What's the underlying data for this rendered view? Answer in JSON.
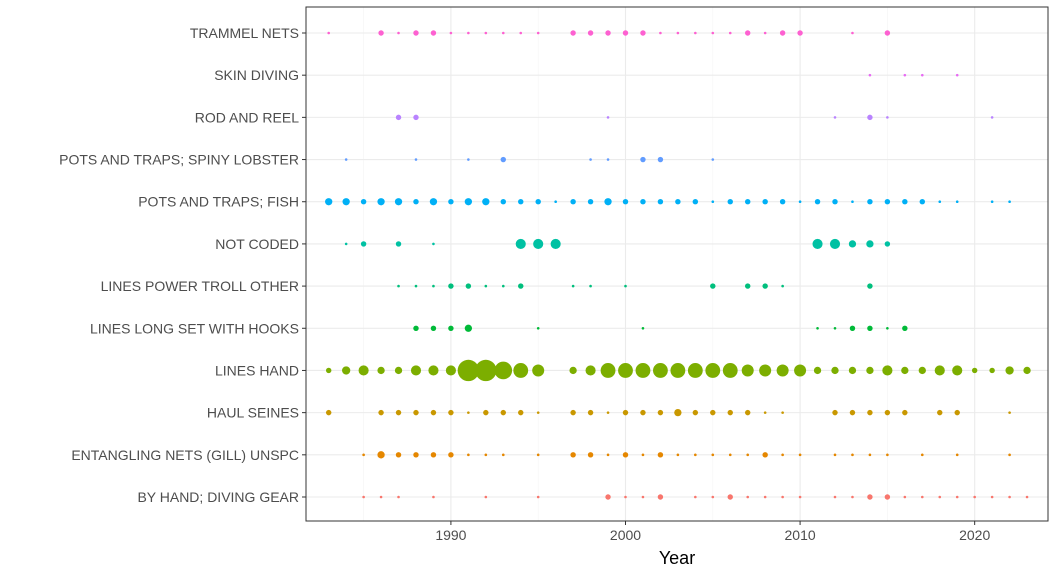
{
  "chart_data": {
    "type": "scatter",
    "title": "",
    "xlabel": "Year",
    "ylabel": "",
    "xlim": [
      1981.7,
      2024.2
    ],
    "x_ticks": [
      1990,
      2000,
      2010,
      2020
    ],
    "grid": true,
    "legend": "none",
    "size_encoding": "relative magnitude (1-5)",
    "categories": [
      "BY HAND; DIVING GEAR",
      "ENTANGLING NETS (GILL) UNSPC",
      "HAUL SEINES",
      "LINES HAND",
      "LINES LONG SET WITH HOOKS",
      "LINES POWER TROLL OTHER",
      "NOT CODED",
      "POTS AND TRAPS; FISH",
      "POTS AND TRAPS; SPINY LOBSTER",
      "ROD AND REEL",
      "SKIN DIVING",
      "TRAMMEL NETS"
    ],
    "series": [
      {
        "category": "BY HAND; DIVING GEAR",
        "color": "#F8766D",
        "points": [
          [
            1985,
            1
          ],
          [
            1986,
            1
          ],
          [
            1987,
            1
          ],
          [
            1989,
            1
          ],
          [
            1992,
            1
          ],
          [
            1995,
            1
          ],
          [
            1999,
            1.6
          ],
          [
            2000,
            1
          ],
          [
            2001,
            1
          ],
          [
            2002,
            1.6
          ],
          [
            2004,
            1
          ],
          [
            2005,
            1
          ],
          [
            2006,
            1.6
          ],
          [
            2007,
            1
          ],
          [
            2008,
            1
          ],
          [
            2009,
            1
          ],
          [
            2010,
            1
          ],
          [
            2012,
            1
          ],
          [
            2013,
            1
          ],
          [
            2014,
            1.6
          ],
          [
            2015,
            1.6
          ],
          [
            2016,
            1
          ],
          [
            2017,
            1
          ],
          [
            2018,
            1
          ],
          [
            2019,
            1
          ],
          [
            2020,
            1
          ],
          [
            2021,
            1
          ],
          [
            2022,
            1
          ],
          [
            2023,
            1
          ]
        ]
      },
      {
        "category": "ENTANGLING NETS (GILL) UNSPC",
        "color": "#E58700",
        "points": [
          [
            1985,
            1
          ],
          [
            1986,
            2
          ],
          [
            1987,
            1.6
          ],
          [
            1988,
            1.6
          ],
          [
            1989,
            1.6
          ],
          [
            1990,
            1.6
          ],
          [
            1991,
            1
          ],
          [
            1992,
            1
          ],
          [
            1993,
            1
          ],
          [
            1995,
            1
          ],
          [
            1997,
            1.6
          ],
          [
            1998,
            1.6
          ],
          [
            1999,
            1
          ],
          [
            2000,
            1.6
          ],
          [
            2001,
            1
          ],
          [
            2002,
            1.6
          ],
          [
            2003,
            1
          ],
          [
            2004,
            1
          ],
          [
            2005,
            1
          ],
          [
            2006,
            1
          ],
          [
            2007,
            1
          ],
          [
            2008,
            1.6
          ],
          [
            2009,
            1
          ],
          [
            2010,
            1
          ],
          [
            2012,
            1
          ],
          [
            2013,
            1
          ],
          [
            2014,
            1
          ],
          [
            2015,
            1
          ],
          [
            2017,
            1
          ],
          [
            2019,
            1
          ],
          [
            2022,
            1
          ]
        ]
      },
      {
        "category": "HAUL SEINES",
        "color": "#C99800",
        "points": [
          [
            1983,
            1.6
          ],
          [
            1986,
            1.6
          ],
          [
            1987,
            1.6
          ],
          [
            1988,
            1.6
          ],
          [
            1989,
            1.6
          ],
          [
            1990,
            1.6
          ],
          [
            1991,
            1
          ],
          [
            1992,
            1.6
          ],
          [
            1993,
            1.6
          ],
          [
            1994,
            1.6
          ],
          [
            1995,
            1
          ],
          [
            1997,
            1.6
          ],
          [
            1998,
            1.6
          ],
          [
            1999,
            1
          ],
          [
            2000,
            1.6
          ],
          [
            2001,
            1.6
          ],
          [
            2002,
            1.6
          ],
          [
            2003,
            2
          ],
          [
            2004,
            1.6
          ],
          [
            2005,
            1.6
          ],
          [
            2006,
            1.6
          ],
          [
            2007,
            1.6
          ],
          [
            2008,
            1
          ],
          [
            2009,
            1
          ],
          [
            2012,
            1.6
          ],
          [
            2013,
            1.6
          ],
          [
            2014,
            1.6
          ],
          [
            2015,
            1.6
          ],
          [
            2016,
            1.6
          ],
          [
            2018,
            1.6
          ],
          [
            2019,
            1.6
          ],
          [
            2022,
            1
          ]
        ]
      },
      {
        "category": "LINES HAND",
        "color": "#7CAE00",
        "points": [
          [
            1983,
            1.6
          ],
          [
            1984,
            2.2
          ],
          [
            1985,
            2.6
          ],
          [
            1986,
            2
          ],
          [
            1987,
            2
          ],
          [
            1988,
            2.6
          ],
          [
            1989,
            2.6
          ],
          [
            1990,
            2.6
          ],
          [
            1991,
            5
          ],
          [
            1992,
            5
          ],
          [
            1993,
            4.2
          ],
          [
            1994,
            3.6
          ],
          [
            1995,
            3
          ],
          [
            1997,
            2
          ],
          [
            1998,
            2.6
          ],
          [
            1999,
            3.6
          ],
          [
            2000,
            3.6
          ],
          [
            2001,
            3.6
          ],
          [
            2002,
            3.6
          ],
          [
            2003,
            3.6
          ],
          [
            2004,
            3.6
          ],
          [
            2005,
            3.6
          ],
          [
            2006,
            3.6
          ],
          [
            2007,
            3
          ],
          [
            2008,
            3
          ],
          [
            2009,
            3
          ],
          [
            2010,
            3
          ],
          [
            2011,
            2
          ],
          [
            2012,
            2
          ],
          [
            2013,
            2
          ],
          [
            2014,
            2
          ],
          [
            2015,
            2.6
          ],
          [
            2016,
            2
          ],
          [
            2017,
            2
          ],
          [
            2018,
            2.6
          ],
          [
            2019,
            2.6
          ],
          [
            2020,
            1.6
          ],
          [
            2021,
            1.6
          ],
          [
            2022,
            2.2
          ],
          [
            2023,
            2
          ]
        ]
      },
      {
        "category": "LINES LONG SET WITH HOOKS",
        "color": "#00BA38",
        "points": [
          [
            1988,
            1.6
          ],
          [
            1989,
            1.6
          ],
          [
            1990,
            1.6
          ],
          [
            1991,
            2
          ],
          [
            1995,
            1
          ],
          [
            2001,
            1
          ],
          [
            2011,
            1
          ],
          [
            2012,
            1
          ],
          [
            2013,
            1.6
          ],
          [
            2014,
            1.6
          ],
          [
            2015,
            1
          ],
          [
            2016,
            1.6
          ]
        ]
      },
      {
        "category": "LINES POWER TROLL OTHER",
        "color": "#00BF7D",
        "points": [
          [
            1987,
            1
          ],
          [
            1988,
            1
          ],
          [
            1989,
            1
          ],
          [
            1990,
            1.6
          ],
          [
            1991,
            1.6
          ],
          [
            1992,
            1
          ],
          [
            1993,
            1
          ],
          [
            1994,
            1.6
          ],
          [
            1997,
            1
          ],
          [
            1998,
            1
          ],
          [
            2000,
            1
          ],
          [
            2005,
            1.6
          ],
          [
            2007,
            1.6
          ],
          [
            2008,
            1.6
          ],
          [
            2009,
            1
          ],
          [
            2014,
            1.6
          ]
        ]
      },
      {
        "category": "NOT CODED",
        "color": "#00C1A3",
        "points": [
          [
            1984,
            1
          ],
          [
            1985,
            1.6
          ],
          [
            1987,
            1.6
          ],
          [
            1989,
            1
          ],
          [
            1994,
            2.6
          ],
          [
            1995,
            2.6
          ],
          [
            1996,
            2.6
          ],
          [
            2011,
            2.6
          ],
          [
            2012,
            2.6
          ],
          [
            2013,
            2
          ],
          [
            2014,
            2
          ],
          [
            2015,
            1.6
          ]
        ]
      },
      {
        "category": "POTS AND TRAPS; FISH",
        "color": "#00B0F6",
        "points": [
          [
            1983,
            2
          ],
          [
            1984,
            2
          ],
          [
            1985,
            1.6
          ],
          [
            1986,
            2
          ],
          [
            1987,
            2
          ],
          [
            1988,
            1.6
          ],
          [
            1989,
            2
          ],
          [
            1990,
            1.6
          ],
          [
            1991,
            2
          ],
          [
            1992,
            2
          ],
          [
            1993,
            1.6
          ],
          [
            1994,
            1.6
          ],
          [
            1995,
            1.6
          ],
          [
            1996,
            1
          ],
          [
            1997,
            1.6
          ],
          [
            1998,
            1.6
          ],
          [
            1999,
            2
          ],
          [
            2000,
            1.6
          ],
          [
            2001,
            1.6
          ],
          [
            2002,
            1.6
          ],
          [
            2003,
            1.6
          ],
          [
            2004,
            1.6
          ],
          [
            2005,
            1
          ],
          [
            2006,
            1.6
          ],
          [
            2007,
            1.6
          ],
          [
            2008,
            1.6
          ],
          [
            2009,
            1.6
          ],
          [
            2010,
            1
          ],
          [
            2011,
            1.6
          ],
          [
            2012,
            1.6
          ],
          [
            2013,
            1
          ],
          [
            2014,
            1.6
          ],
          [
            2015,
            1.6
          ],
          [
            2016,
            1.6
          ],
          [
            2017,
            1.6
          ],
          [
            2018,
            1
          ],
          [
            2019,
            1
          ],
          [
            2021,
            1
          ],
          [
            2022,
            1
          ]
        ]
      },
      {
        "category": "POTS AND TRAPS; SPINY LOBSTER",
        "color": "#619CFF",
        "points": [
          [
            1984,
            1
          ],
          [
            1988,
            1
          ],
          [
            1991,
            1
          ],
          [
            1993,
            1.6
          ],
          [
            1998,
            1
          ],
          [
            1999,
            1
          ],
          [
            2001,
            1.6
          ],
          [
            2002,
            1.6
          ],
          [
            2005,
            1
          ]
        ]
      },
      {
        "category": "ROD AND REEL",
        "color": "#B983FF",
        "points": [
          [
            1987,
            1.6
          ],
          [
            1988,
            1.6
          ],
          [
            1999,
            1
          ],
          [
            2012,
            1
          ],
          [
            2014,
            1.6
          ],
          [
            2015,
            1
          ],
          [
            2021,
            1
          ]
        ]
      },
      {
        "category": "SKIN DIVING",
        "color": "#E76BF3",
        "points": [
          [
            2014,
            1
          ],
          [
            2016,
            1
          ],
          [
            2017,
            1
          ],
          [
            2019,
            1
          ]
        ]
      },
      {
        "category": "TRAMMEL NETS",
        "color": "#FD61D1",
        "points": [
          [
            1983,
            1
          ],
          [
            1986,
            1.6
          ],
          [
            1987,
            1
          ],
          [
            1988,
            1.6
          ],
          [
            1989,
            1.6
          ],
          [
            1990,
            1
          ],
          [
            1991,
            1
          ],
          [
            1992,
            1
          ],
          [
            1993,
            1
          ],
          [
            1994,
            1
          ],
          [
            1995,
            1
          ],
          [
            1997,
            1.6
          ],
          [
            1998,
            1.6
          ],
          [
            1999,
            1.6
          ],
          [
            2000,
            1.6
          ],
          [
            2001,
            1.6
          ],
          [
            2002,
            1
          ],
          [
            2003,
            1
          ],
          [
            2004,
            1
          ],
          [
            2005,
            1
          ],
          [
            2006,
            1
          ],
          [
            2007,
            1.6
          ],
          [
            2008,
            1
          ],
          [
            2009,
            1.6
          ],
          [
            2010,
            1.6
          ],
          [
            2013,
            1
          ],
          [
            2015,
            1.6
          ]
        ]
      }
    ]
  }
}
